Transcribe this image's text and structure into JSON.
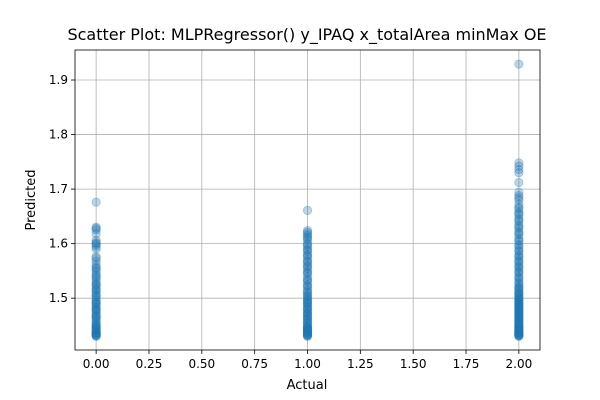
{
  "chart_data": {
    "type": "scatter",
    "title": "Scatter Plot: MLPRegressor() y_IPAQ x_totalArea minMax OE",
    "xlabel": "Actual",
    "ylabel": "Predicted",
    "xlim": [
      -0.1,
      2.1
    ],
    "ylim": [
      1.405,
      1.955
    ],
    "xticks": [
      0.0,
      0.25,
      0.5,
      0.75,
      1.0,
      1.25,
      1.5,
      1.75,
      2.0
    ],
    "xtick_labels": [
      "0.00",
      "0.25",
      "0.50",
      "0.75",
      "1.00",
      "1.25",
      "1.50",
      "1.75",
      "2.00"
    ],
    "yticks": [
      1.5,
      1.6,
      1.7,
      1.8,
      1.9
    ],
    "ytick_labels": [
      "1.5",
      "1.6",
      "1.7",
      "1.8",
      "1.9"
    ],
    "grid": true,
    "marker_color": "#1f77b4",
    "marker_alpha": 0.3,
    "series": [
      {
        "x": [
          0,
          0,
          0,
          0,
          0,
          0,
          0,
          0,
          0,
          0,
          0,
          0,
          0,
          0,
          0,
          0,
          0,
          0,
          0,
          0,
          0,
          0,
          0,
          0,
          0,
          0,
          0,
          0,
          0,
          0,
          0,
          0,
          0,
          0,
          0,
          0,
          0,
          0,
          0,
          0,
          0,
          0,
          0,
          0,
          0,
          0,
          0,
          0,
          0,
          0,
          0,
          0,
          0,
          0,
          0,
          0,
          0,
          0,
          0,
          0,
          0,
          0,
          0,
          0,
          0,
          0,
          0,
          0,
          0,
          0
        ],
        "y": [
          1.676,
          1.63,
          1.625,
          1.618,
          1.606,
          1.602,
          1.598,
          1.594,
          1.59,
          1.576,
          1.568,
          1.562,
          1.555,
          1.552,
          1.548,
          1.543,
          1.538,
          1.534,
          1.53,
          1.526,
          1.522,
          1.518,
          1.514,
          1.51,
          1.506,
          1.502,
          1.498,
          1.495,
          1.492,
          1.489,
          1.486,
          1.483,
          1.48,
          1.477,
          1.474,
          1.471,
          1.468,
          1.465,
          1.462,
          1.459,
          1.456,
          1.453,
          1.45,
          1.448,
          1.446,
          1.444,
          1.442,
          1.44,
          1.438,
          1.436,
          1.435,
          1.434,
          1.433,
          1.432,
          1.431,
          1.43,
          1.443,
          1.437,
          1.451,
          1.466,
          1.479,
          1.491,
          1.505,
          1.515,
          1.525,
          1.541,
          1.557,
          1.573,
          1.6,
          1.628
        ]
      },
      {
        "x": [
          1,
          1,
          1,
          1,
          1,
          1,
          1,
          1,
          1,
          1,
          1,
          1,
          1,
          1,
          1,
          1,
          1,
          1,
          1,
          1,
          1,
          1,
          1,
          1,
          1,
          1,
          1,
          1,
          1,
          1,
          1,
          1,
          1,
          1,
          1,
          1,
          1,
          1,
          1,
          1,
          1,
          1,
          1,
          1,
          1,
          1,
          1,
          1,
          1,
          1,
          1,
          1,
          1,
          1,
          1,
          1,
          1,
          1,
          1,
          1,
          1,
          1,
          1,
          1,
          1,
          1,
          1,
          1,
          1,
          1,
          1,
          1,
          1,
          1,
          1,
          1,
          1,
          1,
          1,
          1
        ],
        "y": [
          1.661,
          1.624,
          1.618,
          1.612,
          1.606,
          1.6,
          1.595,
          1.59,
          1.585,
          1.58,
          1.575,
          1.57,
          1.565,
          1.56,
          1.555,
          1.55,
          1.545,
          1.54,
          1.535,
          1.53,
          1.525,
          1.52,
          1.515,
          1.51,
          1.506,
          1.502,
          1.498,
          1.495,
          1.492,
          1.489,
          1.486,
          1.483,
          1.48,
          1.477,
          1.474,
          1.471,
          1.468,
          1.465,
          1.462,
          1.459,
          1.456,
          1.453,
          1.45,
          1.448,
          1.446,
          1.444,
          1.442,
          1.44,
          1.438,
          1.436,
          1.435,
          1.434,
          1.433,
          1.432,
          1.431,
          1.43,
          1.441,
          1.447,
          1.455,
          1.463,
          1.472,
          1.481,
          1.49,
          1.497,
          1.504,
          1.512,
          1.522,
          1.533,
          1.547,
          1.558,
          1.567,
          1.578,
          1.588,
          1.598,
          1.609,
          1.615,
          1.621,
          1.435,
          1.439,
          1.443
        ]
      },
      {
        "x": [
          2,
          2,
          2,
          2,
          2,
          2,
          2,
          2,
          2,
          2,
          2,
          2,
          2,
          2,
          2,
          2,
          2,
          2,
          2,
          2,
          2,
          2,
          2,
          2,
          2,
          2,
          2,
          2,
          2,
          2,
          2,
          2,
          2,
          2,
          2,
          2,
          2,
          2,
          2,
          2,
          2,
          2,
          2,
          2,
          2,
          2,
          2,
          2,
          2,
          2,
          2,
          2,
          2,
          2,
          2,
          2,
          2,
          2,
          2,
          2,
          2,
          2,
          2,
          2,
          2,
          2,
          2,
          2,
          2,
          2,
          2,
          2,
          2,
          2,
          2,
          2,
          2,
          2,
          2,
          2,
          2,
          2,
          2,
          2,
          2,
          2,
          2,
          2,
          2,
          2,
          2,
          2,
          2,
          2,
          2,
          2,
          2,
          2,
          2,
          2,
          2,
          2,
          2,
          2,
          2,
          2,
          2,
          2,
          2,
          2,
          2,
          2,
          2,
          2,
          2,
          2
        ],
        "y": [
          1.929,
          1.748,
          1.742,
          1.736,
          1.73,
          1.712,
          1.694,
          1.688,
          1.68,
          1.672,
          1.664,
          1.658,
          1.652,
          1.646,
          1.64,
          1.634,
          1.628,
          1.622,
          1.616,
          1.61,
          1.604,
          1.598,
          1.592,
          1.586,
          1.58,
          1.575,
          1.57,
          1.565,
          1.56,
          1.555,
          1.55,
          1.545,
          1.54,
          1.535,
          1.53,
          1.525,
          1.52,
          1.515,
          1.51,
          1.506,
          1.502,
          1.498,
          1.495,
          1.492,
          1.489,
          1.486,
          1.483,
          1.48,
          1.477,
          1.474,
          1.471,
          1.468,
          1.465,
          1.462,
          1.459,
          1.456,
          1.453,
          1.45,
          1.448,
          1.446,
          1.444,
          1.442,
          1.44,
          1.438,
          1.436,
          1.435,
          1.434,
          1.433,
          1.432,
          1.431,
          1.43,
          1.437,
          1.441,
          1.447,
          1.452,
          1.458,
          1.464,
          1.47,
          1.476,
          1.482,
          1.488,
          1.494,
          1.5,
          1.508,
          1.517,
          1.527,
          1.537,
          1.548,
          1.557,
          1.567,
          1.577,
          1.587,
          1.596,
          1.606,
          1.619,
          1.631,
          1.643,
          1.655,
          1.667,
          1.684,
          1.432,
          1.436,
          1.439,
          1.443,
          1.449,
          1.455,
          1.461,
          1.467,
          1.473,
          1.479,
          1.485,
          1.491,
          1.497,
          1.503,
          1.511,
          1.52
        ]
      }
    ]
  }
}
